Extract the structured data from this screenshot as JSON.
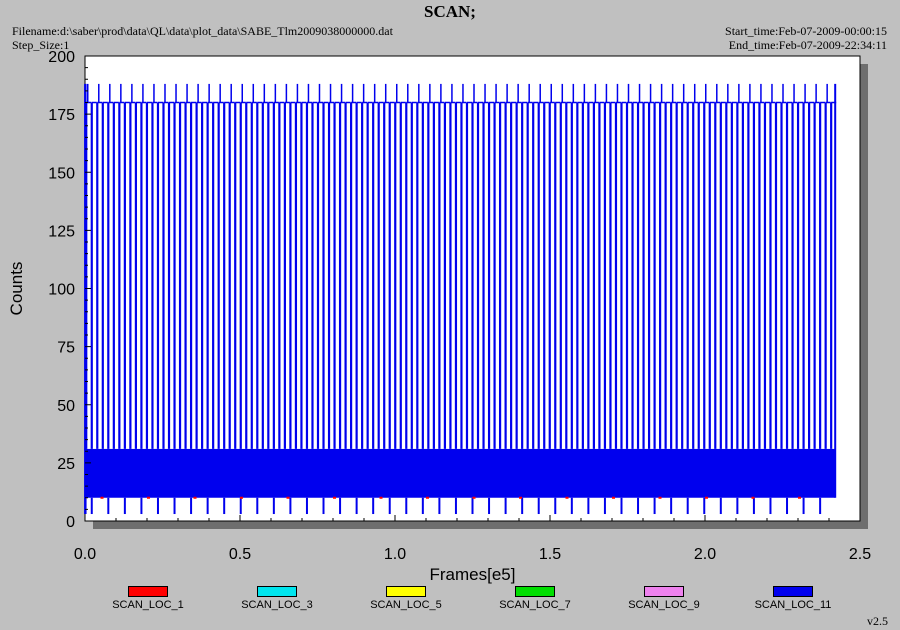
{
  "header": {
    "title": "SCAN;",
    "filename": "Filename:d:\\saber\\prod\\data\\QL\\data\\plot_data\\SABE_Tlm2009038000000.dat",
    "step_size": "Step_Size:1",
    "start_time": "Start_time:Feb-07-2009-00:00:15",
    "end_time": "End_time:Feb-07-2009-22:34:11",
    "version": "v2.5"
  },
  "chart_data": {
    "type": "line",
    "xlabel": "Frames[e5]",
    "ylabel": "Counts",
    "xlim": [
      0,
      2.5
    ],
    "ylim": [
      0,
      200
    ],
    "xticks": [
      0.0,
      0.5,
      1.0,
      1.5,
      2.0,
      2.5
    ],
    "xtick_labels": [
      "0.0",
      "0.5",
      "1.0",
      "1.5",
      "2.0",
      "2.5"
    ],
    "yticks": [
      0,
      25,
      50,
      75,
      100,
      125,
      150,
      175,
      200
    ],
    "ytick_labels": [
      "0",
      "25",
      "50",
      "75",
      "100",
      "125",
      "150",
      "175",
      "200"
    ],
    "grid": false,
    "legend_position": "bottom",
    "series": [
      {
        "name": "SCAN_LOC_1",
        "color": "#ff0000"
      },
      {
        "name": "SCAN_LOC_3",
        "color": "#00e5ee"
      },
      {
        "name": "SCAN_LOC_5",
        "color": "#ffff00"
      },
      {
        "name": "SCAN_LOC_7",
        "color": "#00dd00"
      },
      {
        "name": "SCAN_LOC_9",
        "color": "#ee82ee"
      },
      {
        "name": "SCAN_LOC_11",
        "color": "#0000ee"
      }
    ],
    "pattern": {
      "x_start": 0.0,
      "x_end": 2.42,
      "spike_peak_main": 180,
      "spike_peak_secondary": 188,
      "band_low": 10,
      "band_high": 31,
      "dip_low": 3,
      "spike_spacing": 0.0178
    }
  }
}
